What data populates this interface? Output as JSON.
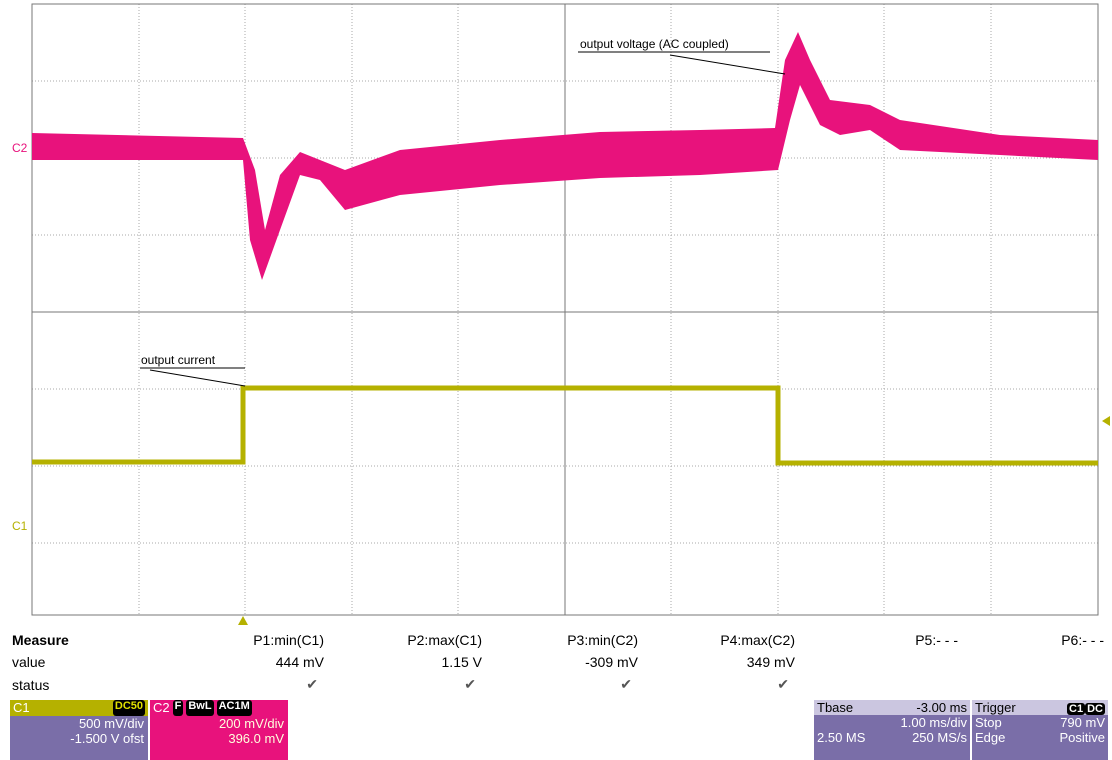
{
  "annotations": {
    "voltage": "output voltage (AC coupled)",
    "current": "output current"
  },
  "channel_markers": {
    "c2": "C2",
    "c1": "C1"
  },
  "measure": {
    "title": "Measure",
    "row_labels": [
      "value",
      "status"
    ],
    "params": [
      {
        "name": "P1:min(C1)",
        "value": "444 mV"
      },
      {
        "name": "P2:max(C1)",
        "value": "1.15 V"
      },
      {
        "name": "P3:min(C2)",
        "value": "-309 mV"
      },
      {
        "name": "P4:max(C2)",
        "value": "349 mV"
      },
      {
        "name": "P5:- - -"
      },
      {
        "name": "P6:- - -"
      }
    ]
  },
  "c1_box": {
    "label": "C1",
    "coupling": "DC50",
    "scale": "500 mV/div",
    "offset": "-1.500 V ofst"
  },
  "c2_box": {
    "label": "C2",
    "tags": [
      "F",
      "BwL",
      "AC1M"
    ],
    "scale": "200 mV/div",
    "offset": "396.0 mV"
  },
  "tbase_box": {
    "label": "Tbase",
    "delay": "-3.00 ms",
    "scale": "1.00 ms/div",
    "samples": "2.50 MS",
    "rate": "250 MS/s"
  },
  "trigger_box": {
    "label": "Trigger",
    "tags": [
      "C1",
      "DC"
    ],
    "level": "790 mV",
    "mode": "Stop",
    "kind": "Edge",
    "slope": "Positive"
  }
}
